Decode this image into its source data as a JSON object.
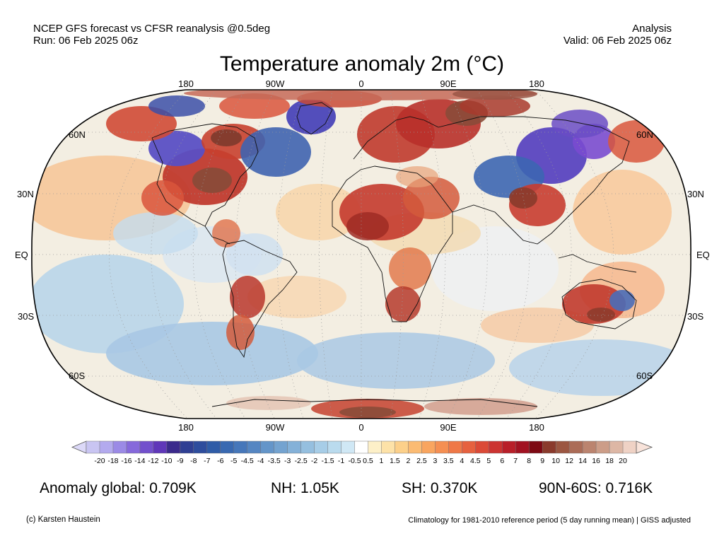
{
  "header": {
    "line1": "NCEP GFS forecast vs CFSR reanalysis @0.5deg",
    "line2": "Run: 06 Feb 2025 06z",
    "right1": "Analysis",
    "right2": "Valid: 06 Feb 2025 06z"
  },
  "title": "Temperature anomaly 2m (°C)",
  "map": {
    "projection": "robinson",
    "lon_labels": [
      "180",
      "90W",
      "0",
      "90E",
      "180"
    ],
    "lat_labels_left": [
      "60N",
      "30N",
      "EQ",
      "30S",
      "60S"
    ],
    "lat_labels_right": [
      "60N",
      "30N",
      "EQ",
      "30S",
      "60S"
    ]
  },
  "colorbar": {
    "labels": [
      "-20",
      "-18",
      "-16",
      "-14",
      "-12",
      "-10",
      "-9",
      "-8",
      "-7",
      "-6",
      "-5",
      "-4.5",
      "-4",
      "-3.5",
      "-3",
      "-2.5",
      "-2",
      "-1.5",
      "-1",
      "-0.5",
      "0.5",
      "1",
      "1.5",
      "2",
      "2.5",
      "3",
      "3.5",
      "4",
      "4.5",
      "5",
      "6",
      "7",
      "8",
      "9",
      "10",
      "12",
      "14",
      "16",
      "18",
      "20"
    ],
    "colors": [
      "#c9c5f2",
      "#b3aaee",
      "#9b8ae6",
      "#8669db",
      "#7250cc",
      "#5f37b9",
      "#3b2a8c",
      "#2f3f93",
      "#2e4d9d",
      "#2f5ca7",
      "#3969b1",
      "#4677ba",
      "#5586c2",
      "#6495c9",
      "#74a3d0",
      "#84b1d8",
      "#95bfdf",
      "#a7cde7",
      "#badbee",
      "#d0e8f5",
      "#ffffff",
      "#fdf0c8",
      "#fde2a8",
      "#fcd08a",
      "#fbbb73",
      "#f9a55f",
      "#f58f52",
      "#ef7847",
      "#e6613f",
      "#db4a37",
      "#cc3431",
      "#b81f29",
      "#a11221",
      "#7d0913",
      "#8a3a2c",
      "#9b5641",
      "#ab6c57",
      "#bb846f",
      "#cc9d88",
      "#ddb7a5",
      "#efd2c5"
    ],
    "left_end_color": "#dcd9f8",
    "right_end_color": "#f8e3da"
  },
  "stats": {
    "global": "Anomaly global: 0.709K",
    "nh": "NH: 1.05K",
    "sh": "SH: 0.370K",
    "polar": "90N-60S: 0.716K"
  },
  "footer": {
    "left": "(c) Karsten Haustein",
    "right": "Climatology for 1981-2010 reference period (5 day running mean) | GISS adjusted"
  }
}
